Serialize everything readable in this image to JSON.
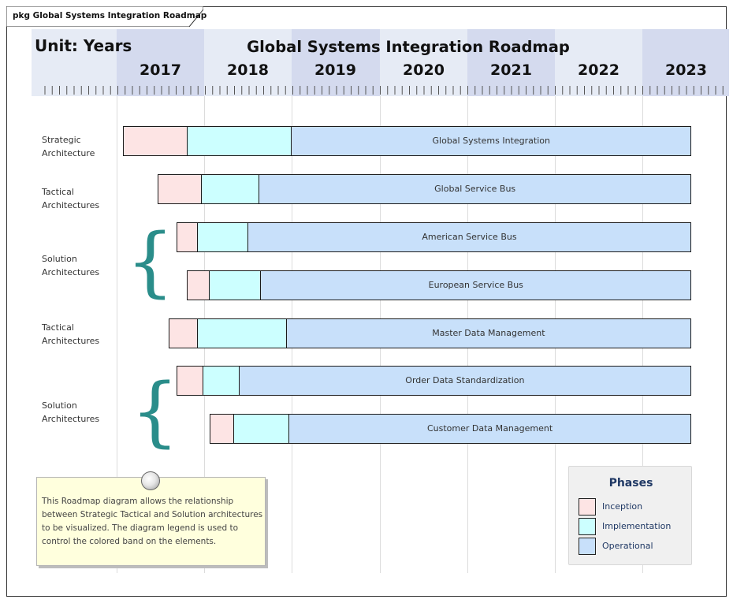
{
  "package": {
    "title": "pkg Global Systems Integration Roadmap"
  },
  "header": {
    "unit_label": "Unit: Years",
    "title": "Global Systems Integration Roadmap",
    "years": [
      "2017",
      "2018",
      "2019",
      "2020",
      "2021",
      "2022",
      "2023"
    ]
  },
  "row_labels": [
    {
      "line1": "Strategic",
      "line2": "Architecture"
    },
    {
      "line1": "Tactical",
      "line2": "Architectures"
    },
    {
      "line1": "Solution",
      "line2": "Architectures"
    },
    {
      "line1": "Tactical",
      "line2": "Architectures"
    },
    {
      "line1": "Solution",
      "line2": "Architectures"
    }
  ],
  "elements": [
    {
      "label": "Global Systems Integration",
      "inception_start": 2017.07,
      "implementation_start": 2017.8,
      "operational_start": 2018.99,
      "end": 2023.56
    },
    {
      "label": "Global Service Bus",
      "inception_start": 2017.47,
      "implementation_start": 2017.96,
      "operational_start": 2018.62,
      "end": 2023.56
    },
    {
      "label": "American Service Bus",
      "inception_start": 2017.68,
      "implementation_start": 2017.92,
      "operational_start": 2018.49,
      "end": 2023.56
    },
    {
      "label": "European Service Bus",
      "inception_start": 2017.8,
      "implementation_start": 2018.05,
      "operational_start": 2018.64,
      "end": 2023.56
    },
    {
      "label": "Master Data Management",
      "inception_start": 2017.59,
      "implementation_start": 2017.92,
      "operational_start": 2018.93,
      "end": 2023.56
    },
    {
      "label": "Order Data Standardization",
      "inception_start": 2017.68,
      "implementation_start": 2017.98,
      "operational_start": 2018.39,
      "end": 2023.56
    },
    {
      "label": "Customer Data Management",
      "inception_start": 2018.06,
      "implementation_start": 2018.33,
      "operational_start": 2018.96,
      "end": 2023.56
    }
  ],
  "note": {
    "text": "This Roadmap diagram allows the relationship between Strategic Tactical and Solution architectures to be visualized. The diagram legend is used to control the colored band on the elements."
  },
  "legend": {
    "title": "Phases",
    "items": [
      {
        "label": "Inception",
        "color": "#fde4e4"
      },
      {
        "label": "Implementation",
        "color": "#ccffff"
      },
      {
        "label": "Operational",
        "color": "#c8e0fa"
      }
    ]
  },
  "colors": {
    "band_light": "#e6ebf5",
    "band_dark": "#d4daee",
    "brace": "#2a8d8a",
    "legend_text": "#1f3864"
  }
}
